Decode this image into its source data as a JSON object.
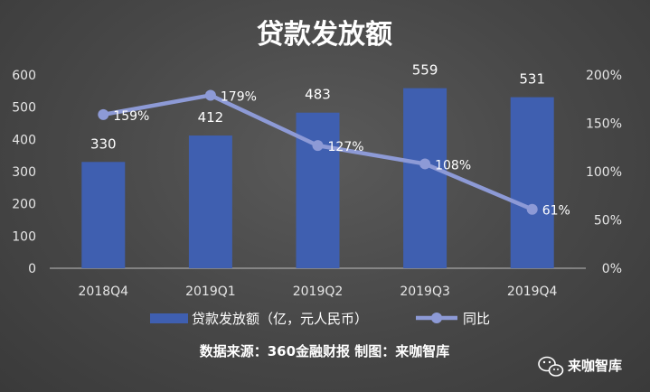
{
  "chart_data": {
    "type": "bar",
    "title": "贷款发放额",
    "categories": [
      "2018Q4",
      "2019Q1",
      "2019Q2",
      "2019Q3",
      "2019Q4"
    ],
    "series": [
      {
        "name": "贷款发放额（亿，元人民币）",
        "type": "bar",
        "axis": "left",
        "values": [
          330,
          412,
          483,
          559,
          531
        ],
        "labels": [
          "330",
          "412",
          "483",
          "559",
          "531"
        ],
        "color": "#3f5fb0"
      },
      {
        "name": "同比",
        "type": "line",
        "axis": "right",
        "values": [
          159,
          179,
          127,
          108,
          61
        ],
        "labels": [
          "159%",
          "179%",
          "127%",
          "108%",
          "61%"
        ],
        "color": "#8d9ad6"
      }
    ],
    "y_left": {
      "min": 0,
      "max": 600,
      "step": 100,
      "ticks": [
        "0",
        "100",
        "200",
        "300",
        "400",
        "500",
        "600"
      ]
    },
    "y_right": {
      "min": 0,
      "max": 200,
      "step": 50,
      "ticks": [
        "0%",
        "50%",
        "100%",
        "150%",
        "200%"
      ]
    },
    "legend_position": "bottom",
    "grid": false
  },
  "source_text": "数据来源：360金融财报 制图：来咖智库",
  "watermark": {
    "text": "来咖智库",
    "icon": "wechat-icon"
  }
}
